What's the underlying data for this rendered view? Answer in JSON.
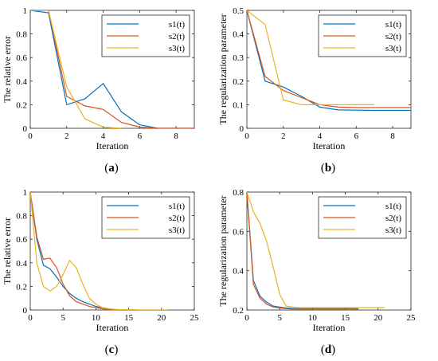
{
  "series_colors": [
    "#0072BD",
    "#D95319",
    "#EDB120"
  ],
  "panel_labels": [
    "(",
    "a",
    ")",
    "(",
    "b",
    ")",
    "(",
    "c",
    ")",
    "(",
    "d",
    ")"
  ],
  "chart_data": [
    {
      "type": "line",
      "panel": "a",
      "xlabel": "Iteration",
      "ylabel": "The relative error",
      "xlim": [
        0,
        9
      ],
      "ylim": [
        0,
        1
      ],
      "xticks": [
        0,
        2,
        4,
        6,
        8
      ],
      "yticks": [
        0,
        0.2,
        0.4,
        0.6,
        0.8,
        1
      ],
      "xtick_labels": [
        "0",
        "2",
        "4",
        "6",
        "8"
      ],
      "ytick_labels": [
        "0",
        "0.2",
        "0.4",
        "0.6",
        "0.8",
        "1"
      ],
      "grid": false,
      "legend": "top-right",
      "series": [
        {
          "name": "s1(t)",
          "x": [
            0,
            1,
            2,
            3,
            4,
            5,
            6,
            7,
            8,
            9
          ],
          "y": [
            1.0,
            0.98,
            0.2,
            0.25,
            0.38,
            0.14,
            0.03,
            0.0,
            0.0,
            0.0
          ]
        },
        {
          "name": "s2(t)",
          "x": [
            0,
            1,
            2,
            3,
            4,
            5,
            6,
            7,
            8,
            9
          ],
          "y": [
            1.0,
            1.0,
            0.27,
            0.19,
            0.16,
            0.05,
            0.01,
            0.0,
            0.0,
            0.0
          ]
        },
        {
          "name": "s3(t)",
          "x": [
            0,
            1,
            2,
            3,
            4,
            5
          ],
          "y": [
            1.0,
            1.0,
            0.35,
            0.08,
            0.01,
            0.0
          ]
        }
      ]
    },
    {
      "type": "line",
      "panel": "b",
      "xlabel": "Iteration",
      "ylabel": "The regularization parameter",
      "xlim": [
        0,
        9
      ],
      "ylim": [
        0,
        0.5
      ],
      "xticks": [
        0,
        2,
        4,
        6,
        8
      ],
      "yticks": [
        0,
        0.1,
        0.2,
        0.3,
        0.4,
        0.5
      ],
      "xtick_labels": [
        "0",
        "2",
        "4",
        "6",
        "8"
      ],
      "ytick_labels": [
        "0",
        "0.1",
        "0.2",
        "0.3",
        "0.4",
        "0.5"
      ],
      "grid": false,
      "legend": "top-right",
      "series": [
        {
          "name": "s1(t)",
          "x": [
            0,
            1,
            2,
            3,
            4,
            5,
            6,
            7,
            8,
            9
          ],
          "y": [
            0.5,
            0.2,
            0.175,
            0.135,
            0.09,
            0.078,
            0.077,
            0.076,
            0.076,
            0.076
          ]
        },
        {
          "name": "s2(t)",
          "x": [
            0,
            1,
            2,
            3,
            4,
            5,
            6,
            7,
            8,
            9
          ],
          "y": [
            0.5,
            0.22,
            0.16,
            0.13,
            0.1,
            0.09,
            0.088,
            0.088,
            0.088,
            0.088
          ]
        },
        {
          "name": "s3(t)",
          "x": [
            0,
            1,
            2,
            3,
            4,
            5,
            6,
            7
          ],
          "y": [
            0.5,
            0.44,
            0.12,
            0.1,
            0.1,
            0.1,
            0.1,
            0.1
          ]
        }
      ]
    },
    {
      "type": "line",
      "panel": "c",
      "xlabel": "Iteration",
      "ylabel": "The relative error",
      "xlim": [
        0,
        25
      ],
      "ylim": [
        0,
        1
      ],
      "xticks": [
        0,
        5,
        10,
        15,
        20,
        25
      ],
      "yticks": [
        0,
        0.2,
        0.4,
        0.6,
        0.8,
        1
      ],
      "xtick_labels": [
        "0",
        "5",
        "10",
        "15",
        "20",
        "25"
      ],
      "ytick_labels": [
        "0",
        "0.2",
        "0.4",
        "0.6",
        "0.8",
        "1"
      ],
      "grid": false,
      "legend": "top-right",
      "series": [
        {
          "name": "s1(t)",
          "x": [
            0,
            1,
            2,
            3,
            4,
            5,
            6,
            7,
            8,
            9,
            10,
            11,
            12,
            13,
            14,
            15,
            16
          ],
          "y": [
            1.0,
            0.6,
            0.38,
            0.35,
            0.28,
            0.2,
            0.14,
            0.1,
            0.07,
            0.05,
            0.03,
            0.02,
            0.01,
            0.005,
            0.0,
            0.0,
            0.0
          ]
        },
        {
          "name": "s2(t)",
          "x": [
            0,
            1,
            2,
            3,
            4,
            5,
            6,
            7,
            8,
            9,
            10,
            11,
            12,
            13,
            14,
            15,
            16
          ],
          "y": [
            1.0,
            0.62,
            0.43,
            0.44,
            0.36,
            0.22,
            0.12,
            0.07,
            0.05,
            0.03,
            0.02,
            0.01,
            0.005,
            0.0,
            0.0,
            0.0,
            0.0
          ]
        },
        {
          "name": "s3(t)",
          "x": [
            0,
            1,
            2,
            3,
            4,
            5,
            6,
            7,
            8,
            9,
            10,
            11,
            12,
            13,
            14,
            15,
            16,
            17,
            18,
            19,
            20,
            21
          ],
          "y": [
            1.0,
            0.4,
            0.2,
            0.16,
            0.2,
            0.3,
            0.42,
            0.36,
            0.22,
            0.1,
            0.05,
            0.02,
            0.01,
            0.005,
            0.003,
            0.002,
            0.001,
            0.0,
            0.0,
            0.0,
            0.0,
            0.0
          ]
        }
      ]
    },
    {
      "type": "line",
      "panel": "d",
      "xlabel": "Iteration",
      "ylabel": "The regularization parameter",
      "xlim": [
        0,
        25
      ],
      "ylim": [
        0.2,
        0.8
      ],
      "xticks": [
        0,
        5,
        10,
        15,
        20,
        25
      ],
      "yticks": [
        0.2,
        0.4,
        0.6,
        0.8
      ],
      "xtick_labels": [
        "0",
        "5",
        "10",
        "15",
        "20",
        "25"
      ],
      "ytick_labels": [
        "0.2",
        "0.4",
        "0.6",
        "0.8"
      ],
      "grid": false,
      "legend": "top-right",
      "series": [
        {
          "name": "s1(t)",
          "x": [
            0,
            1,
            2,
            3,
            4,
            5,
            6,
            7,
            8,
            9,
            10,
            11,
            12,
            13,
            14,
            15,
            16,
            17
          ],
          "y": [
            0.8,
            0.35,
            0.27,
            0.24,
            0.22,
            0.215,
            0.21,
            0.208,
            0.207,
            0.207,
            0.207,
            0.207,
            0.207,
            0.207,
            0.207,
            0.207,
            0.207,
            0.207
          ]
        },
        {
          "name": "s2(t)",
          "x": [
            0,
            1,
            2,
            3,
            4,
            5,
            6,
            7,
            8,
            9,
            10,
            11,
            12,
            13,
            14,
            15,
            16,
            17
          ],
          "y": [
            0.8,
            0.33,
            0.26,
            0.23,
            0.215,
            0.21,
            0.207,
            0.205,
            0.205,
            0.205,
            0.205,
            0.205,
            0.205,
            0.205,
            0.205,
            0.205,
            0.205,
            0.205
          ]
        },
        {
          "name": "s3(t)",
          "x": [
            0,
            1,
            2,
            3,
            4,
            5,
            6,
            7,
            8,
            9,
            10,
            11,
            12,
            13,
            14,
            15,
            16,
            17,
            18,
            19,
            20,
            21
          ],
          "y": [
            0.8,
            0.7,
            0.64,
            0.55,
            0.42,
            0.28,
            0.22,
            0.215,
            0.212,
            0.212,
            0.212,
            0.212,
            0.212,
            0.212,
            0.212,
            0.212,
            0.212,
            0.212,
            0.212,
            0.212,
            0.212,
            0.212
          ]
        }
      ]
    }
  ]
}
